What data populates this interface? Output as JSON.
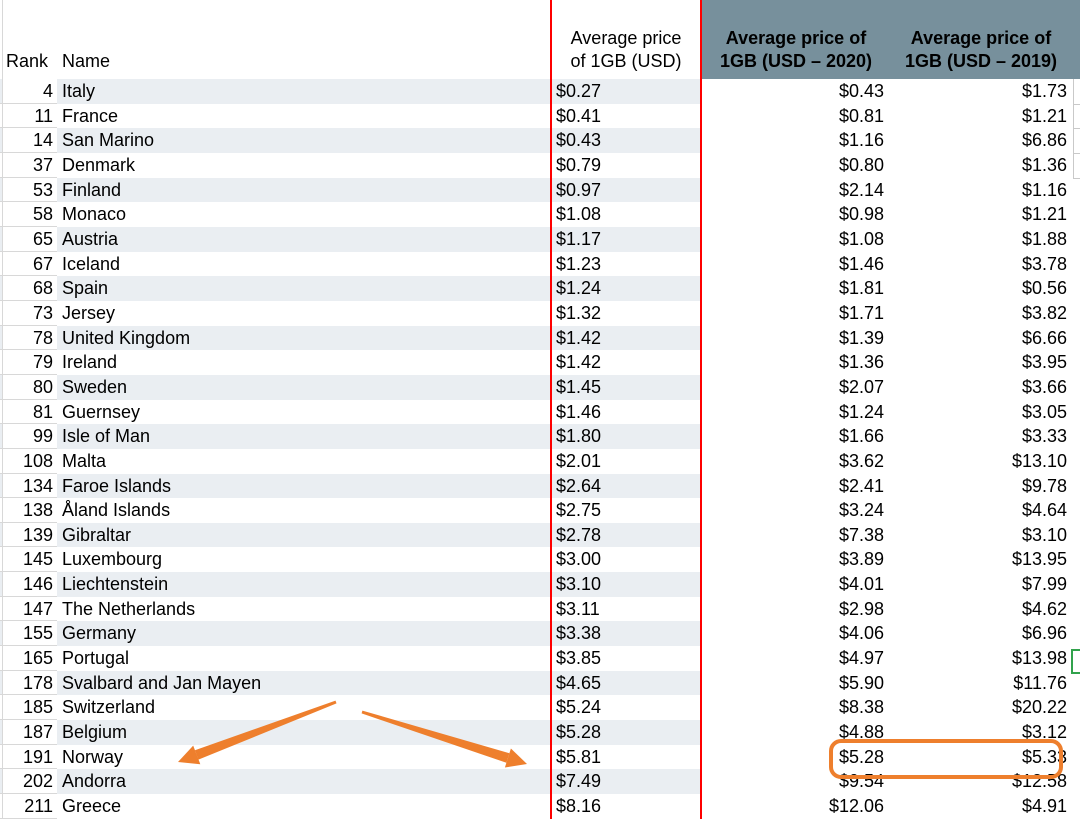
{
  "table": {
    "headers": {
      "rank": "Rank",
      "name": "Name",
      "price_line1": "Average price",
      "price_line2": "of 1GB (USD)",
      "y2020_line1": "Average price of",
      "y2020_line2": "1GB (USD – 2020)",
      "y2019_line1": "Average price of",
      "y2019_line2": "1GB (USD – 2019)"
    },
    "rows": [
      {
        "rank": "4",
        "name": "Italy",
        "price": "$0.27",
        "y2020": "$0.43",
        "y2019": "$1.73"
      },
      {
        "rank": "11",
        "name": "France",
        "price": "$0.41",
        "y2020": "$0.81",
        "y2019": "$1.21"
      },
      {
        "rank": "14",
        "name": "San Marino",
        "price": "$0.43",
        "y2020": "$1.16",
        "y2019": "$6.86"
      },
      {
        "rank": "37",
        "name": "Denmark",
        "price": "$0.79",
        "y2020": "$0.80",
        "y2019": "$1.36"
      },
      {
        "rank": "53",
        "name": "Finland",
        "price": "$0.97",
        "y2020": "$2.14",
        "y2019": "$1.16"
      },
      {
        "rank": "58",
        "name": "Monaco",
        "price": "$1.08",
        "y2020": "$0.98",
        "y2019": "$1.21"
      },
      {
        "rank": "65",
        "name": "Austria",
        "price": "$1.17",
        "y2020": "$1.08",
        "y2019": "$1.88"
      },
      {
        "rank": "67",
        "name": "Iceland",
        "price": "$1.23",
        "y2020": "$1.46",
        "y2019": "$3.78"
      },
      {
        "rank": "68",
        "name": "Spain",
        "price": "$1.24",
        "y2020": "$1.81",
        "y2019": "$0.56"
      },
      {
        "rank": "73",
        "name": "Jersey",
        "price": "$1.32",
        "y2020": "$1.71",
        "y2019": "$3.82"
      },
      {
        "rank": "78",
        "name": "United Kingdom",
        "price": "$1.42",
        "y2020": "$1.39",
        "y2019": "$6.66"
      },
      {
        "rank": "79",
        "name": "Ireland",
        "price": "$1.42",
        "y2020": "$1.36",
        "y2019": "$3.95"
      },
      {
        "rank": "80",
        "name": "Sweden",
        "price": "$1.45",
        "y2020": "$2.07",
        "y2019": "$3.66"
      },
      {
        "rank": "81",
        "name": "Guernsey",
        "price": "$1.46",
        "y2020": "$1.24",
        "y2019": "$3.05"
      },
      {
        "rank": "99",
        "name": "Isle of Man",
        "price": "$1.80",
        "y2020": "$1.66",
        "y2019": "$3.33"
      },
      {
        "rank": "108",
        "name": "Malta",
        "price": "$2.01",
        "y2020": "$3.62",
        "y2019": "$13.10"
      },
      {
        "rank": "134",
        "name": "Faroe Islands",
        "price": "$2.64",
        "y2020": "$2.41",
        "y2019": "$9.78"
      },
      {
        "rank": "138",
        "name": "Åland Islands",
        "price": "$2.75",
        "y2020": "$3.24",
        "y2019": "$4.64"
      },
      {
        "rank": "139",
        "name": "Gibraltar",
        "price": "$2.78",
        "y2020": "$7.38",
        "y2019": "$3.10"
      },
      {
        "rank": "145",
        "name": "Luxembourg",
        "price": "$3.00",
        "y2020": "$3.89",
        "y2019": "$13.95"
      },
      {
        "rank": "146",
        "name": "Liechtenstein",
        "price": "$3.10",
        "y2020": "$4.01",
        "y2019": "$7.99"
      },
      {
        "rank": "147",
        "name": "The Netherlands",
        "price": "$3.11",
        "y2020": "$2.98",
        "y2019": "$4.62"
      },
      {
        "rank": "155",
        "name": "Germany",
        "price": "$3.38",
        "y2020": "$4.06",
        "y2019": "$6.96"
      },
      {
        "rank": "165",
        "name": "Portugal",
        "price": "$3.85",
        "y2020": "$4.97",
        "y2019": "$13.98"
      },
      {
        "rank": "178",
        "name": "Svalbard and Jan Mayen",
        "price": "$4.65",
        "y2020": "$5.90",
        "y2019": "$11.76"
      },
      {
        "rank": "185",
        "name": "Switzerland",
        "price": "$5.24",
        "y2020": "$8.38",
        "y2019": "$20.22"
      },
      {
        "rank": "187",
        "name": "Belgium",
        "price": "$5.28",
        "y2020": "$4.88",
        "y2019": "$3.12"
      },
      {
        "rank": "191",
        "name": "Norway",
        "price": "$5.81",
        "y2020": "$5.28",
        "y2019": "$5.33"
      },
      {
        "rank": "202",
        "name": "Andorra",
        "price": "$7.49",
        "y2020": "$9.54",
        "y2019": "$12.58"
      },
      {
        "rank": "211",
        "name": "Greece",
        "price": "$8.16",
        "y2020": "$12.06",
        "y2019": "$4.91"
      }
    ]
  },
  "annotations": {
    "highlighted_row": "Norway",
    "highlighted_values": [
      "$5.28",
      "$5.33"
    ]
  },
  "colors": {
    "stripe": "#eaeef2",
    "header_gray": "#77909c",
    "red_outline": "#fe0000",
    "orange_annotation": "#ee7f2d",
    "green_fragment": "#31a24c",
    "gridline": "#d8d8d8"
  }
}
